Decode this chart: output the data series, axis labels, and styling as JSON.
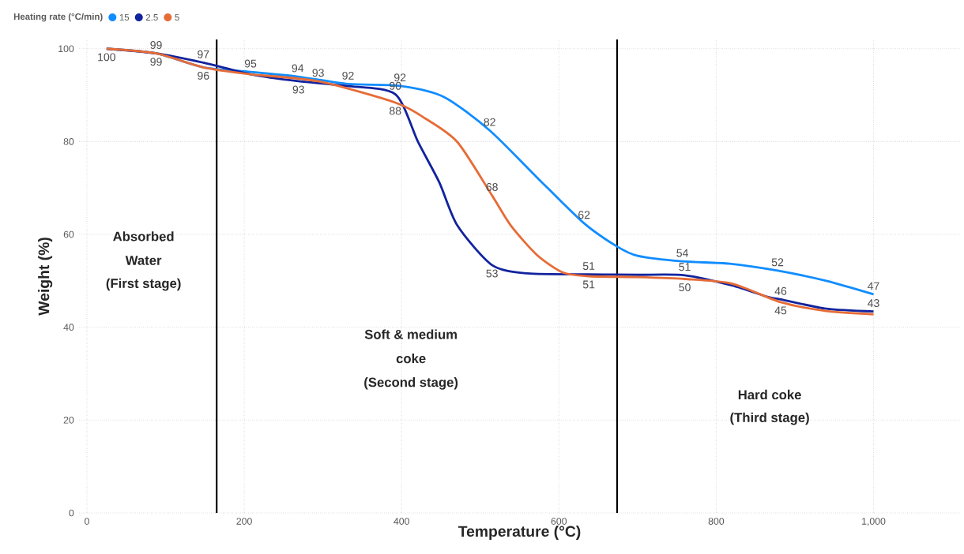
{
  "chart_data": {
    "type": "line",
    "xlabel": "Temperature (°C)",
    "ylabel": "Weight (%)",
    "legend_title": "Heating rate (°C/min)",
    "legend": "top left",
    "grid": true,
    "marker": "none",
    "line_style": "solid",
    "xlim": [
      -10,
      1110
    ],
    "ylim": [
      0,
      102
    ],
    "xticks": [
      0,
      200,
      400,
      600,
      800,
      {
        "value": 1000,
        "label": "1,000"
      }
    ],
    "yticks": [
      0,
      20,
      40,
      60,
      80,
      100
    ],
    "series": [
      {
        "name": "15",
        "color": "#118dff",
        "x": [
          25,
          88,
          148,
          208,
          268,
          332,
          398,
          454,
          512,
          572,
          632,
          674,
          700,
          757,
          817,
          878,
          940,
          1000
        ],
        "values": [
          100,
          99,
          96,
          95,
          94,
          92.4,
          92,
          89.6,
          82.4,
          72.3,
          62.4,
          57.4,
          55.4,
          54.2,
          53.7,
          52.2,
          50,
          47.1
        ],
        "value_labels": [
          null,
          null,
          null,
          "95",
          "94",
          "92",
          "92",
          null,
          "82",
          null,
          "62",
          null,
          null,
          "54",
          null,
          "52",
          null,
          "47"
        ]
      },
      {
        "name": "2.5",
        "color": "#12239e",
        "x": [
          25,
          88,
          148,
          208,
          269,
          330,
          392,
          421,
          448,
          471,
          515,
          560,
          638,
          700,
          760,
          820,
          866,
          882,
          940,
          1000
        ],
        "values": [
          100,
          99,
          97,
          94.5,
          93,
          92,
          90.2,
          79.9,
          71.2,
          61.9,
          53.4,
          51.6,
          51.4,
          51.3,
          51.2,
          49,
          46.5,
          46,
          44,
          43.4
        ],
        "value_labels": [
          null,
          "99",
          "97",
          null,
          "93",
          null,
          "90",
          null,
          null,
          null,
          "53",
          null,
          "51",
          null,
          "51",
          null,
          null,
          "46",
          null,
          "43"
        ]
      },
      {
        "name": "5",
        "color": "#e66c37",
        "x": [
          25,
          88,
          148,
          208,
          294,
          392,
          430,
          471,
          515,
          539,
          572,
          605,
          638,
          700,
          760,
          820,
          882,
          940,
          1000
        ],
        "values": [
          100,
          99,
          96,
          94.5,
          93,
          88.4,
          85,
          79.9,
          68.4,
          61.9,
          55.6,
          51.8,
          51,
          50.8,
          50.4,
          49.4,
          45.4,
          43.5,
          42.8
        ],
        "value_labels": [
          "100",
          "99",
          "96",
          null,
          "93",
          "88",
          null,
          null,
          "68",
          null,
          null,
          null,
          "51",
          null,
          "50",
          null,
          "45",
          null,
          null
        ]
      }
    ],
    "ref_lines": [
      {
        "axis": "x",
        "value": 165,
        "color": "#000000"
      },
      {
        "axis": "x",
        "value": 674,
        "color": "#000000"
      }
    ],
    "annotations": [
      "Absorbed",
      "Water",
      "(First stage)",
      "Soft & medium",
      "coke",
      "(Second stage)",
      "Hard coke",
      "(Third stage)"
    ]
  }
}
